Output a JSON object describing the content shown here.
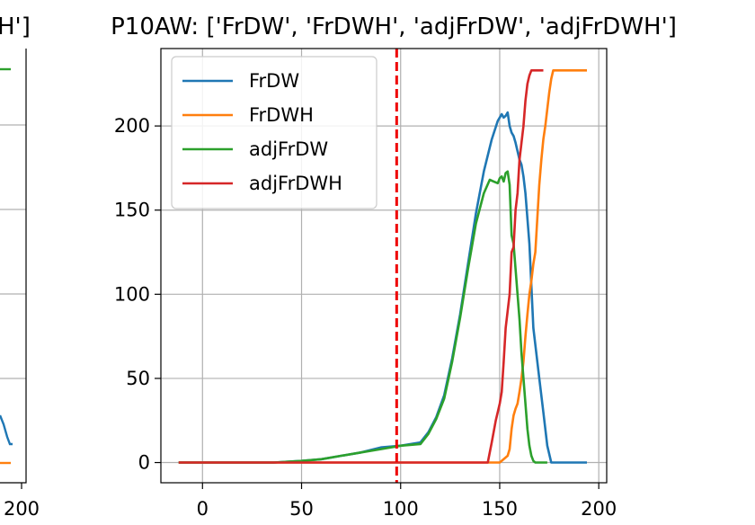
{
  "colors": {
    "FrDW": "#1f77b4",
    "FrDWH": "#ff7f0e",
    "adjFrDW": "#2ca02c",
    "adjFrDWH": "#d62728",
    "vline": "#ee0000",
    "grid": "#b0b0b0"
  },
  "left_panel": {
    "title_fragment": "H']",
    "xtick_fragment": "200"
  },
  "chart_data": {
    "type": "line",
    "title": "P10AW: ['FrDW', 'FrDWH', 'adjFrDW', 'adjFrDWH']",
    "xlabel": "",
    "ylabel": "",
    "xlim": [
      -21,
      204
    ],
    "ylim": [
      -12,
      246
    ],
    "xticks": [
      0,
      50,
      100,
      150,
      200
    ],
    "yticks": [
      0,
      50,
      100,
      150,
      200
    ],
    "grid": true,
    "legend_position": "top-left",
    "vline": 98,
    "series": [
      {
        "name": "FrDW",
        "x": [
          -12,
          36,
          50,
          60,
          70,
          80,
          90,
          100,
          110,
          114,
          118,
          122,
          126,
          130,
          134,
          138,
          142,
          146,
          149,
          151,
          152,
          153,
          154,
          155,
          156,
          157,
          158,
          160,
          161,
          162,
          163,
          164,
          165,
          166,
          167,
          168,
          170,
          172,
          174,
          176,
          185,
          194
        ],
        "y": [
          0,
          0,
          1,
          2,
          4,
          6,
          9,
          10,
          12,
          18,
          27,
          40,
          62,
          88,
          118,
          148,
          173,
          192,
          203,
          207,
          205,
          206,
          208,
          200,
          196,
          194,
          190,
          180,
          177,
          170,
          160,
          145,
          130,
          105,
          80,
          70,
          50,
          30,
          10,
          0,
          0,
          0
        ]
      },
      {
        "name": "FrDWH",
        "x": [
          -12,
          36,
          50,
          100,
          150,
          152,
          154,
          155,
          156,
          157,
          158,
          159,
          160,
          161,
          162,
          163,
          164,
          165,
          166,
          167,
          168,
          169,
          170,
          171,
          172,
          173,
          174,
          175,
          176,
          177,
          178,
          194
        ],
        "y": [
          0,
          0,
          0,
          0,
          0,
          2,
          4,
          8,
          20,
          28,
          32,
          35,
          42,
          50,
          60,
          75,
          88,
          100,
          108,
          118,
          125,
          145,
          165,
          180,
          192,
          200,
          210,
          220,
          228,
          233,
          233,
          233
        ]
      },
      {
        "name": "adjFrDW",
        "x": [
          -12,
          36,
          50,
          60,
          70,
          80,
          90,
          100,
          110,
          114,
          118,
          122,
          126,
          130,
          134,
          138,
          142,
          145,
          147,
          149,
          150,
          151,
          152,
          153,
          154,
          155,
          156,
          157,
          158,
          159,
          160,
          161,
          162,
          163,
          164,
          165,
          166,
          167,
          168,
          170,
          174
        ],
        "y": [
          0,
          0,
          1,
          2,
          4,
          6,
          8,
          10,
          11,
          17,
          26,
          38,
          60,
          86,
          115,
          142,
          160,
          168,
          167,
          166,
          169,
          170,
          167,
          172,
          173,
          165,
          135,
          130,
          115,
          100,
          85,
          65,
          50,
          35,
          20,
          10,
          4,
          1,
          0,
          0,
          0
        ]
      },
      {
        "name": "adjFrDWH",
        "x": [
          -12,
          36,
          50,
          100,
          130,
          144,
          146,
          148,
          149,
          150,
          151,
          152,
          153,
          154,
          155,
          156,
          157,
          158,
          159,
          160,
          161,
          162,
          163,
          164,
          165,
          166,
          167,
          168,
          169,
          170,
          172
        ],
        "y": [
          0,
          0,
          0,
          0,
          0,
          0,
          12,
          25,
          30,
          35,
          42,
          60,
          80,
          90,
          100,
          125,
          128,
          150,
          160,
          180,
          190,
          200,
          215,
          225,
          230,
          233,
          233,
          233,
          233,
          233,
          233
        ]
      }
    ]
  }
}
